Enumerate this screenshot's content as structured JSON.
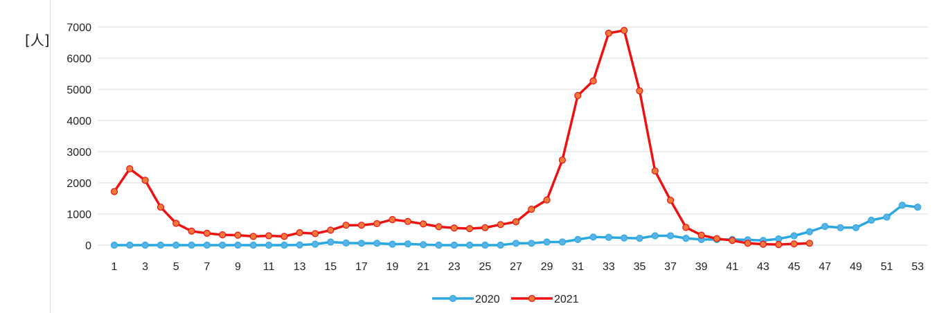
{
  "chart_data": {
    "type": "line",
    "title": "",
    "xlabel": "",
    "ylabel": "[人]",
    "ylim": [
      0,
      7000
    ],
    "yticks": [
      0,
      1000,
      2000,
      3000,
      4000,
      5000,
      6000,
      7000
    ],
    "xticks": [
      1,
      3,
      5,
      7,
      9,
      11,
      13,
      15,
      17,
      19,
      21,
      23,
      25,
      27,
      29,
      31,
      33,
      35,
      37,
      39,
      41,
      43,
      45,
      47,
      49,
      51,
      53
    ],
    "grid": "horizontal",
    "legend_position": "bottom",
    "series": [
      {
        "name": "2020",
        "color": "#29a8e0",
        "marker_fill": "#5ab3e6",
        "x": [
          1,
          2,
          3,
          4,
          5,
          6,
          7,
          8,
          9,
          10,
          11,
          12,
          13,
          14,
          15,
          16,
          17,
          18,
          19,
          20,
          21,
          22,
          23,
          24,
          25,
          26,
          27,
          28,
          29,
          30,
          31,
          32,
          33,
          34,
          35,
          36,
          37,
          38,
          39,
          40,
          41,
          42,
          43,
          44,
          45,
          46,
          47,
          48,
          49,
          50,
          51,
          52,
          53
        ],
        "values": [
          0,
          0,
          0,
          0,
          0,
          0,
          0,
          0,
          0,
          0,
          0,
          0,
          5,
          30,
          100,
          70,
          60,
          60,
          30,
          40,
          15,
          0,
          0,
          0,
          0,
          0,
          60,
          60,
          100,
          100,
          180,
          260,
          250,
          230,
          220,
          300,
          300,
          220,
          180,
          180,
          180,
          170,
          150,
          200,
          300,
          430,
          600,
          560,
          560,
          800,
          900,
          1280,
          1220
        ]
      },
      {
        "name": "2021",
        "color": "#ee1111",
        "marker_fill": "#f07a3c",
        "x": [
          1,
          2,
          3,
          4,
          5,
          6,
          7,
          8,
          9,
          10,
          11,
          12,
          13,
          14,
          15,
          16,
          17,
          18,
          19,
          20,
          21,
          22,
          23,
          24,
          25,
          26,
          27,
          28,
          29,
          30,
          31,
          32,
          33,
          34,
          35,
          36,
          37,
          38,
          39,
          40,
          41,
          42,
          43,
          44,
          45,
          46
        ],
        "values": [
          1720,
          2450,
          2080,
          1220,
          700,
          450,
          380,
          330,
          320,
          280,
          300,
          280,
          400,
          370,
          480,
          640,
          640,
          690,
          820,
          760,
          680,
          590,
          550,
          530,
          560,
          660,
          750,
          1150,
          1450,
          2730,
          4800,
          5270,
          6800,
          6890,
          4950,
          2380,
          1440,
          570,
          320,
          210,
          150,
          60,
          30,
          20,
          40,
          60
        ]
      }
    ]
  }
}
